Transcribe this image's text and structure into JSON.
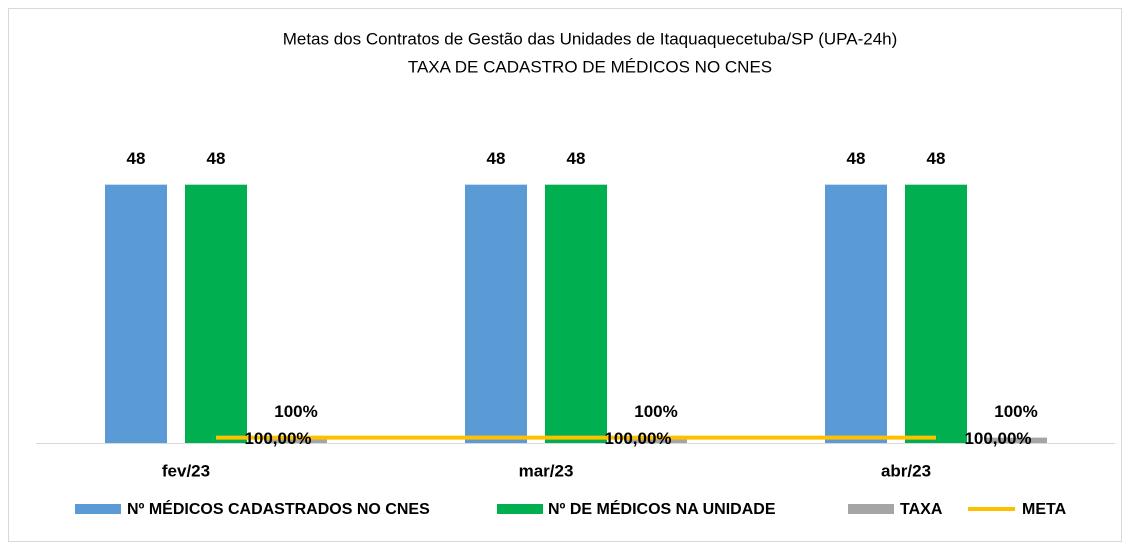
{
  "chart_data": {
    "type": "bar",
    "title": "Metas dos Contratos de Gestão das Unidades de Itaquaquecetuba/SP (UPA-24h)",
    "subtitle": "TAXA DE CADASTRO DE MÉDICOS NO CNES",
    "categories": [
      "fev/23",
      "mar/23",
      "abr/23"
    ],
    "ylim": [
      0,
      55
    ],
    "series": [
      {
        "name": "Nº MÉDICOS CADASTRADOS NO CNES",
        "color": "#5b9bd5",
        "values": [
          48,
          48,
          48
        ]
      },
      {
        "name": "Nº DE MÉDICOS NA UNIDADE",
        "color": "#00b050",
        "values": [
          48,
          48,
          48
        ]
      },
      {
        "name": "TAXA",
        "color": "#a5a5a5",
        "values": [
          1,
          1,
          1
        ],
        "value_labels": [
          "100%",
          "100%",
          "100%"
        ]
      },
      {
        "name": "META",
        "type": "line",
        "color": "#ffc000",
        "values": [
          1,
          1,
          1
        ],
        "value_labels": [
          "100,00%",
          "100,00%",
          "100,00%"
        ]
      }
    ]
  }
}
